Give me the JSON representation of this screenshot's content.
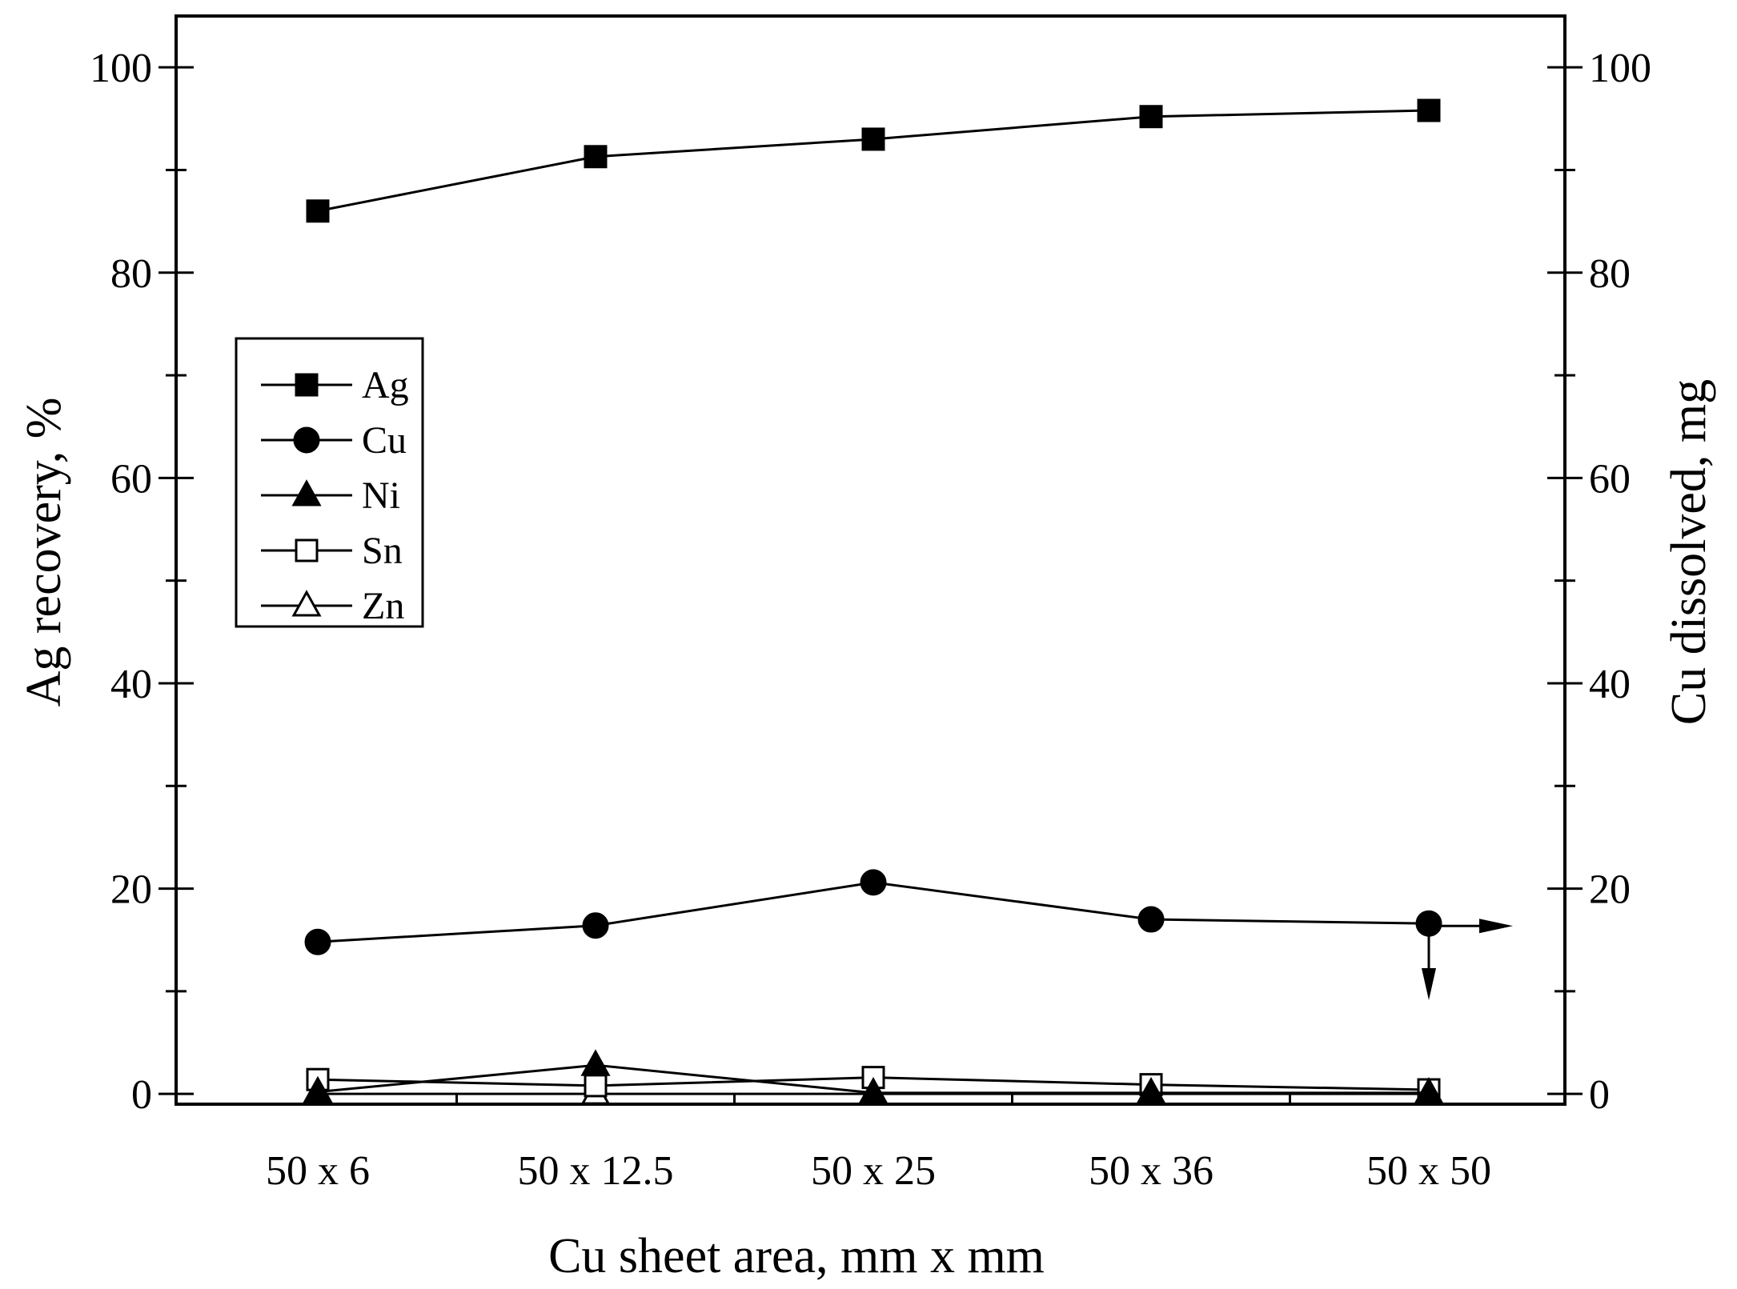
{
  "chart_data": {
    "type": "line",
    "xlabel": "Cu sheet area, mm x mm",
    "ylabel": "Ag recovery, %",
    "y2label": "Cu dissolved, mg",
    "categories": [
      "50 x 6",
      "50 x 12.5",
      "50 x 25",
      "50 x 36",
      "50 x 50"
    ],
    "ylim": [
      -1,
      105
    ],
    "y2lim": [
      -1,
      105
    ],
    "yticks": [
      0,
      20,
      40,
      60,
      80,
      100
    ],
    "yticklabels": [
      "0",
      "20",
      "40",
      "60",
      "80",
      "100"
    ],
    "y2ticks": [
      0,
      20,
      40,
      60,
      80,
      100
    ],
    "y2ticklabels": [
      "0",
      "20",
      "40",
      "60",
      "80",
      "100"
    ],
    "minor_tick_step": 10,
    "grid": false,
    "legend_position": "upper-left",
    "series": [
      {
        "name": "Ag",
        "marker": "square-filled",
        "axis": "left",
        "values": [
          86.0,
          91.3,
          93.0,
          95.2,
          95.8
        ]
      },
      {
        "name": "Cu",
        "marker": "circle-filled",
        "axis": "right",
        "values": [
          14.8,
          16.4,
          20.6,
          17.0,
          16.6
        ]
      },
      {
        "name": "Ni",
        "marker": "triangle-filled",
        "axis": "left",
        "values": [
          0.2,
          2.8,
          0.1,
          0.1,
          0.1
        ]
      },
      {
        "name": "Sn",
        "marker": "square-open",
        "axis": "left",
        "values": [
          1.4,
          0.8,
          1.6,
          0.9,
          0.4
        ]
      },
      {
        "name": "Zn",
        "marker": "triangle-open",
        "axis": "left",
        "values": [
          0.0,
          0.0,
          0.0,
          0.0,
          0.0
        ]
      }
    ],
    "annotations": [
      {
        "type": "arrow",
        "direction": "right",
        "points_to": "right axis",
        "series": "Cu"
      },
      {
        "type": "arrow",
        "direction": "down",
        "series": "Cu"
      }
    ]
  }
}
